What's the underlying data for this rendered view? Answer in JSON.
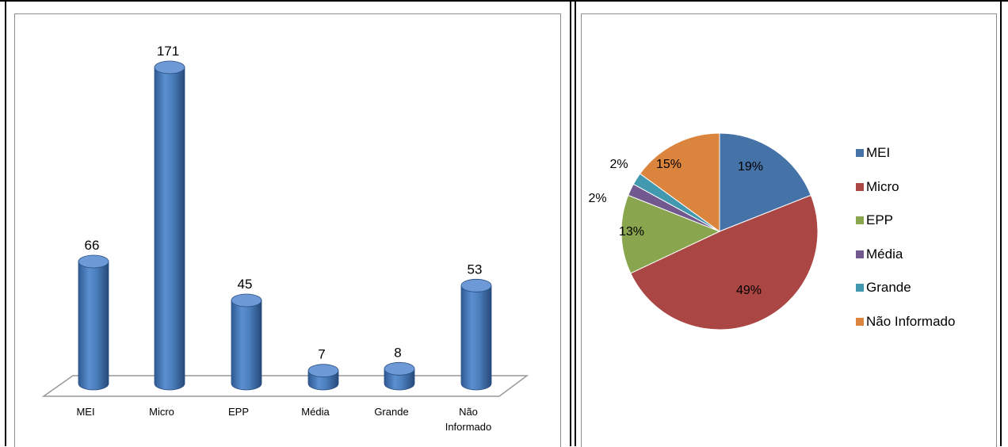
{
  "chart_data": [
    {
      "type": "bar",
      "categories": [
        "MEI",
        "Micro",
        "EPP",
        "Média",
        "Grande",
        "Não Informado"
      ],
      "category_lines": [
        [
          "MEI"
        ],
        [
          "Micro"
        ],
        [
          "EPP"
        ],
        [
          "Média"
        ],
        [
          "Grande"
        ],
        [
          "Não",
          "Informado"
        ]
      ],
      "values": [
        66,
        171,
        45,
        7,
        8,
        53
      ],
      "value_labels": [
        "66",
        "171",
        "45",
        "7",
        "8",
        "53"
      ],
      "bar_style": "3d-cylinder",
      "color": "#4a7ebb",
      "grid": false
    },
    {
      "type": "pie",
      "labels": [
        "MEI",
        "Micro",
        "EPP",
        "Média",
        "Grande",
        "Não Informado"
      ],
      "values": [
        19,
        49,
        13,
        2,
        2,
        15
      ],
      "value_labels": [
        "19%",
        "49%",
        "13%",
        "2%",
        "2%",
        "15%"
      ],
      "colors": [
        "#4572a7",
        "#aa4643",
        "#89a54e",
        "#71588f",
        "#4198af",
        "#db843d"
      ],
      "legend_position": "right"
    }
  ]
}
